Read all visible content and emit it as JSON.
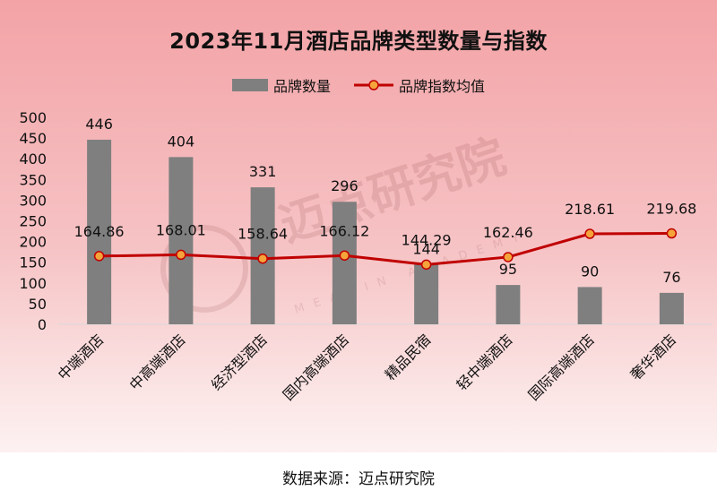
{
  "page": {
    "source": "数据来源：迈点研究院"
  },
  "watermark": {
    "text": "迈点研究院",
    "subtext": "MEADIN ACADEMY"
  },
  "colors": {
    "bar": "#7f7f7f",
    "line": "#c00000",
    "marker_fill": "#f4a43a"
  },
  "chart_data": {
    "type": "bar",
    "title": "2023年11月酒店品牌类型数量与指数",
    "categories": [
      "中端酒店",
      "中高端酒店",
      "经济型酒店",
      "国内高端酒店",
      "精品民宿",
      "轻中端酒店",
      "国际高端酒店",
      "奢华酒店"
    ],
    "series": [
      {
        "name": "品牌数量",
        "type": "bar",
        "values": [
          446,
          404,
          331,
          296,
          144,
          95,
          90,
          76
        ]
      },
      {
        "name": "品牌指数均值",
        "type": "line",
        "values": [
          164.86,
          168.01,
          158.64,
          166.12,
          144.29,
          162.46,
          218.61,
          219.68
        ]
      }
    ],
    "ylim": [
      0,
      500
    ],
    "yticks": [
      0,
      50,
      100,
      150,
      200,
      250,
      300,
      350,
      400,
      450,
      500
    ],
    "legend": "top-center",
    "grid": false
  }
}
